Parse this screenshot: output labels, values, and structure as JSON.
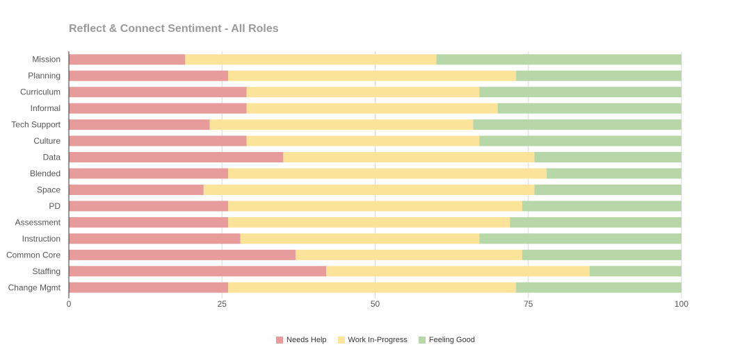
{
  "chart_data": {
    "type": "bar",
    "orientation": "horizontal",
    "stacked": true,
    "title": "Reflect & Connect Sentiment - All Roles",
    "xlabel": "",
    "ylabel": "",
    "xlim": [
      0,
      100
    ],
    "xticks": [
      "0",
      "25",
      "50",
      "75",
      "100"
    ],
    "grid": true,
    "legend_position": "bottom",
    "categories": [
      "Mission",
      "Planning",
      "Curriculum",
      "Informal",
      "Tech Support",
      "Culture",
      "Data",
      "Blended",
      "Space",
      "PD",
      "Assessment",
      "Instruction",
      "Common Core",
      "Staffing",
      "Change Mgmt"
    ],
    "series": [
      {
        "name": "Needs Help",
        "color": "#e89b9b",
        "values": [
          19,
          26,
          29,
          29,
          23,
          29,
          35,
          26,
          22,
          26,
          26,
          28,
          37,
          42,
          26
        ]
      },
      {
        "name": "Work In-Progress",
        "color": "#fbe39a",
        "values": [
          41,
          47,
          38,
          41,
          43,
          38,
          41,
          52,
          54,
          48,
          46,
          39,
          37,
          43,
          47
        ]
      },
      {
        "name": "Feeling Good",
        "color": "#b7d7a8",
        "values": [
          40,
          27,
          33,
          30,
          34,
          33,
          24,
          22,
          24,
          26,
          28,
          33,
          26,
          15,
          27
        ]
      }
    ]
  }
}
